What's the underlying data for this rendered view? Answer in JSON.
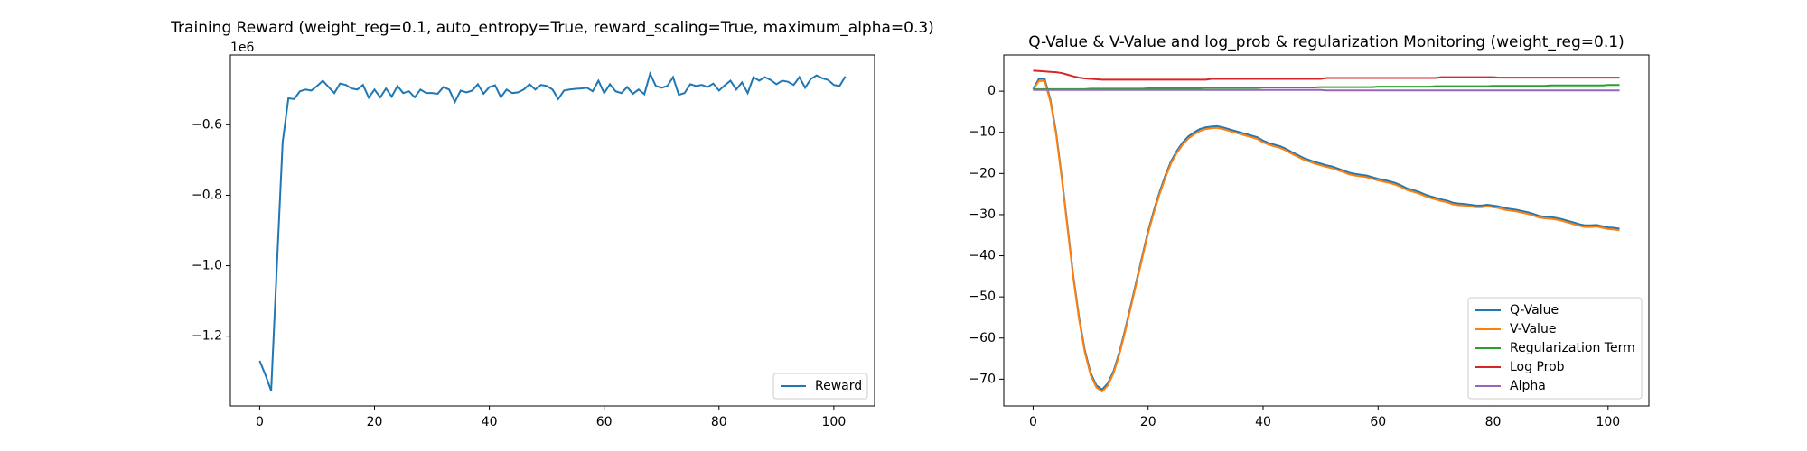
{
  "chart_data": [
    {
      "type": "line",
      "title": "Training Reward (weight_reg=0.1, auto_entropy=True, reward_scaling=True, maximum_alpha=0.3)",
      "y_offset_label": "1e6",
      "x": [
        0,
        1,
        2,
        3,
        4,
        5,
        6,
        7,
        8,
        9,
        10,
        11,
        12,
        13,
        14,
        15,
        16,
        17,
        18,
        19,
        20,
        21,
        22,
        23,
        24,
        25,
        26,
        27,
        28,
        29,
        30,
        31,
        32,
        33,
        34,
        35,
        36,
        37,
        38,
        39,
        40,
        41,
        42,
        43,
        44,
        45,
        46,
        47,
        48,
        49,
        50,
        51,
        52,
        53,
        54,
        55,
        56,
        57,
        58,
        59,
        60,
        61,
        62,
        63,
        64,
        65,
        66,
        67,
        68,
        69,
        70,
        71,
        72,
        73,
        74,
        75,
        76,
        77,
        78,
        79,
        80,
        81,
        82,
        83,
        84,
        85,
        86,
        87,
        88,
        89,
        90,
        91,
        92,
        93,
        94,
        95,
        96,
        97,
        98,
        99,
        100,
        101,
        102
      ],
      "series": [
        {
          "name": "Reward",
          "color": "#1f77b4",
          "values": [
            -1.27,
            -1.31,
            -1.355,
            -1.0,
            -0.65,
            -0.525,
            -0.527,
            -0.505,
            -0.5,
            -0.503,
            -0.49,
            -0.475,
            -0.493,
            -0.51,
            -0.483,
            -0.487,
            -0.497,
            -0.5,
            -0.487,
            -0.523,
            -0.5,
            -0.522,
            -0.497,
            -0.52,
            -0.49,
            -0.51,
            -0.505,
            -0.522,
            -0.5,
            -0.51,
            -0.51,
            -0.512,
            -0.493,
            -0.5,
            -0.535,
            -0.503,
            -0.508,
            -0.503,
            -0.485,
            -0.512,
            -0.493,
            -0.488,
            -0.522,
            -0.5,
            -0.51,
            -0.508,
            -0.5,
            -0.485,
            -0.5,
            -0.487,
            -0.49,
            -0.5,
            -0.527,
            -0.503,
            -0.5,
            -0.498,
            -0.497,
            -0.495,
            -0.505,
            -0.475,
            -0.51,
            -0.485,
            -0.505,
            -0.51,
            -0.493,
            -0.512,
            -0.5,
            -0.513,
            -0.455,
            -0.49,
            -0.495,
            -0.49,
            -0.465,
            -0.515,
            -0.51,
            -0.485,
            -0.49,
            -0.487,
            -0.493,
            -0.483,
            -0.503,
            -0.488,
            -0.475,
            -0.5,
            -0.48,
            -0.51,
            -0.465,
            -0.475,
            -0.465,
            -0.473,
            -0.485,
            -0.475,
            -0.478,
            -0.487,
            -0.465,
            -0.495,
            -0.47,
            -0.46,
            -0.468,
            -0.473,
            -0.487,
            -0.49,
            -0.463
          ]
        }
      ],
      "xlim": [
        -5.1,
        107.1
      ],
      "ylim": [
        -1.398,
        -0.402
      ],
      "xticks": [
        0,
        20,
        40,
        60,
        80,
        100
      ],
      "yticks": [
        {
          "value": -1.2,
          "label": "−1.2"
        },
        {
          "value": -1.0,
          "label": "−1.0"
        },
        {
          "value": -0.8,
          "label": "−0.8"
        },
        {
          "value": -0.6,
          "label": "−0.6"
        }
      ],
      "grid": false,
      "legend": "lower right"
    },
    {
      "type": "line",
      "title": "Q-Value & V-Value and log_prob & regularization Monitoring (weight_reg=0.1)",
      "x": [
        0,
        1,
        2,
        3,
        4,
        5,
        6,
        7,
        8,
        9,
        10,
        11,
        12,
        13,
        14,
        15,
        16,
        17,
        18,
        19,
        20,
        21,
        22,
        23,
        24,
        25,
        26,
        27,
        28,
        29,
        30,
        31,
        32,
        33,
        34,
        35,
        36,
        37,
        38,
        39,
        40,
        41,
        42,
        43,
        44,
        45,
        46,
        47,
        48,
        49,
        50,
        51,
        52,
        53,
        54,
        55,
        56,
        57,
        58,
        59,
        60,
        61,
        62,
        63,
        64,
        65,
        66,
        67,
        68,
        69,
        70,
        71,
        72,
        73,
        74,
        75,
        76,
        77,
        78,
        79,
        80,
        81,
        82,
        83,
        84,
        85,
        86,
        87,
        88,
        89,
        90,
        91,
        92,
        93,
        94,
        95,
        96,
        97,
        98,
        99,
        100,
        101,
        102
      ],
      "series": [
        {
          "name": "Q-Value",
          "color": "#1f77b4",
          "values": [
            0.5,
            3,
            3,
            -2,
            -10,
            -21,
            -33,
            -45,
            -55,
            -63,
            -68.5,
            -71.5,
            -72.5,
            -71,
            -68,
            -63.5,
            -58,
            -52,
            -46,
            -40,
            -34,
            -29,
            -24.5,
            -20.5,
            -17,
            -14.5,
            -12.5,
            -11,
            -10,
            -9.2,
            -8.8,
            -8.6,
            -8.5,
            -8.8,
            -9.2,
            -9.6,
            -10,
            -10.4,
            -10.8,
            -11.2,
            -12,
            -12.6,
            -13,
            -13.4,
            -14,
            -14.8,
            -15.5,
            -16.2,
            -16.7,
            -17.2,
            -17.6,
            -18,
            -18.3,
            -18.8,
            -19.3,
            -19.8,
            -20.1,
            -20.3,
            -20.5,
            -20.9,
            -21.3,
            -21.6,
            -21.9,
            -22.3,
            -22.9,
            -23.6,
            -24,
            -24.4,
            -25,
            -25.5,
            -25.9,
            -26.3,
            -26.6,
            -27.1,
            -27.3,
            -27.4,
            -27.6,
            -27.8,
            -27.8,
            -27.6,
            -27.8,
            -28,
            -28.4,
            -28.6,
            -28.8,
            -29.1,
            -29.4,
            -29.8,
            -30.3,
            -30.5,
            -30.6,
            -30.8,
            -31.1,
            -31.5,
            -31.9,
            -32.3,
            -32.6,
            -32.6,
            -32.5,
            -32.8,
            -33.1,
            -33.2,
            -33.4
          ]
        },
        {
          "name": "V-Value",
          "color": "#ff7f0e",
          "values": [
            0.3,
            2.5,
            2.5,
            -2.5,
            -10.5,
            -21.5,
            -33.5,
            -45.5,
            -55.5,
            -63.5,
            -69,
            -72,
            -73,
            -71.5,
            -68.5,
            -64,
            -58.5,
            -52.5,
            -46.5,
            -40.5,
            -34.5,
            -29.5,
            -25,
            -21,
            -17.5,
            -15,
            -13,
            -11.5,
            -10.5,
            -9.7,
            -9.2,
            -9,
            -8.9,
            -9.2,
            -9.6,
            -10,
            -10.4,
            -10.8,
            -11.2,
            -11.6,
            -12.4,
            -13,
            -13.4,
            -13.8,
            -14.4,
            -15.2,
            -15.9,
            -16.6,
            -17.1,
            -17.6,
            -18,
            -18.4,
            -18.7,
            -19.2,
            -19.7,
            -20.2,
            -20.5,
            -20.7,
            -20.9,
            -21.3,
            -21.7,
            -22,
            -22.3,
            -22.7,
            -23.3,
            -24,
            -24.4,
            -24.8,
            -25.4,
            -25.9,
            -26.3,
            -26.7,
            -27,
            -27.5,
            -27.7,
            -27.8,
            -28,
            -28.2,
            -28.2,
            -28,
            -28.2,
            -28.4,
            -28.8,
            -29,
            -29.2,
            -29.5,
            -29.8,
            -30.2,
            -30.7,
            -30.9,
            -31,
            -31.2,
            -31.5,
            -31.9,
            -32.3,
            -32.7,
            -33,
            -33,
            -32.9,
            -33.2,
            -33.5,
            -33.6,
            -33.8
          ]
        },
        {
          "name": "Regularization Term",
          "color": "#2ca02c",
          "values": [
            0.5,
            0.5,
            0.5,
            0.5,
            0.5,
            0.5,
            0.5,
            0.5,
            0.5,
            0.5,
            0.6,
            0.6,
            0.6,
            0.6,
            0.6,
            0.6,
            0.6,
            0.6,
            0.6,
            0.6,
            0.7,
            0.7,
            0.7,
            0.7,
            0.7,
            0.7,
            0.7,
            0.7,
            0.7,
            0.7,
            0.8,
            0.8,
            0.8,
            0.8,
            0.8,
            0.8,
            0.8,
            0.8,
            0.8,
            0.8,
            0.9,
            0.9,
            0.9,
            0.9,
            0.9,
            0.9,
            0.9,
            0.9,
            0.9,
            0.9,
            1.0,
            1.0,
            1.0,
            1.0,
            1.0,
            1.0,
            1.0,
            1.0,
            1.0,
            1.0,
            1.1,
            1.1,
            1.1,
            1.1,
            1.1,
            1.1,
            1.1,
            1.1,
            1.1,
            1.1,
            1.2,
            1.2,
            1.2,
            1.2,
            1.2,
            1.2,
            1.2,
            1.2,
            1.2,
            1.2,
            1.3,
            1.3,
            1.3,
            1.3,
            1.3,
            1.3,
            1.3,
            1.3,
            1.3,
            1.3,
            1.4,
            1.4,
            1.4,
            1.4,
            1.4,
            1.4,
            1.4,
            1.4,
            1.4,
            1.4,
            1.5,
            1.5,
            1.5
          ]
        },
        {
          "name": "Log Prob",
          "color": "#d62728",
          "values": [
            5,
            4.9,
            4.8,
            4.7,
            4.6,
            4.4,
            4,
            3.6,
            3.3,
            3.1,
            3.0,
            2.9,
            2.8,
            2.8,
            2.8,
            2.8,
            2.8,
            2.8,
            2.8,
            2.8,
            2.8,
            2.8,
            2.8,
            2.8,
            2.8,
            2.8,
            2.8,
            2.8,
            2.8,
            2.8,
            2.8,
            3.0,
            3.0,
            3.0,
            3.0,
            3.0,
            3.0,
            3.0,
            3.0,
            3.0,
            3.0,
            3.0,
            3.0,
            3.0,
            3.0,
            3.0,
            3.0,
            3.0,
            3.0,
            3.0,
            3.0,
            3.2,
            3.2,
            3.2,
            3.2,
            3.2,
            3.2,
            3.2,
            3.2,
            3.2,
            3.2,
            3.2,
            3.2,
            3.2,
            3.2,
            3.2,
            3.2,
            3.2,
            3.2,
            3.2,
            3.2,
            3.4,
            3.4,
            3.4,
            3.4,
            3.4,
            3.4,
            3.4,
            3.4,
            3.4,
            3.4,
            3.3,
            3.3,
            3.3,
            3.3,
            3.3,
            3.3,
            3.3,
            3.3,
            3.3,
            3.3,
            3.3,
            3.3,
            3.3,
            3.3,
            3.3,
            3.3,
            3.3,
            3.3,
            3.3,
            3.3,
            3.3,
            3.3
          ]
        },
        {
          "name": "Alpha",
          "color": "#9467bd",
          "values": [
            0.3,
            0.3,
            0.3,
            0.3,
            0.3,
            0.3,
            0.3,
            0.3,
            0.3,
            0.3,
            0.3,
            0.3,
            0.3,
            0.3,
            0.3,
            0.3,
            0.3,
            0.3,
            0.3,
            0.3,
            0.3,
            0.3,
            0.3,
            0.3,
            0.3,
            0.3,
            0.3,
            0.3,
            0.3,
            0.3,
            0.3,
            0.3,
            0.3,
            0.3,
            0.3,
            0.3,
            0.3,
            0.3,
            0.3,
            0.3,
            0.3,
            0.3,
            0.3,
            0.3,
            0.3,
            0.3,
            0.3,
            0.3,
            0.3,
            0.3,
            0.3,
            0.2,
            0.2,
            0.2,
            0.2,
            0.2,
            0.2,
            0.2,
            0.2,
            0.2,
            0.2,
            0.2,
            0.2,
            0.2,
            0.2,
            0.2,
            0.2,
            0.2,
            0.2,
            0.2,
            0.2,
            0.2,
            0.2,
            0.2,
            0.2,
            0.2,
            0.2,
            0.2,
            0.2,
            0.2,
            0.2,
            0.2,
            0.2,
            0.2,
            0.2,
            0.2,
            0.2,
            0.2,
            0.2,
            0.2,
            0.2,
            0.2,
            0.2,
            0.2,
            0.2,
            0.2,
            0.2,
            0.2,
            0.2,
            0.2,
            0.2,
            0.2,
            0.2
          ]
        }
      ],
      "xlim": [
        -5.1,
        107.1
      ],
      "ylim": [
        -76.5,
        8.8
      ],
      "xticks": [
        0,
        20,
        40,
        60,
        80,
        100
      ],
      "yticks": [
        {
          "value": -70,
          "label": "−70"
        },
        {
          "value": -60,
          "label": "−60"
        },
        {
          "value": -50,
          "label": "−50"
        },
        {
          "value": -40,
          "label": "−40"
        },
        {
          "value": -30,
          "label": "−30"
        },
        {
          "value": -20,
          "label": "−20"
        },
        {
          "value": -10,
          "label": "−10"
        },
        0
      ],
      "grid": false,
      "legend": "lower right"
    }
  ]
}
